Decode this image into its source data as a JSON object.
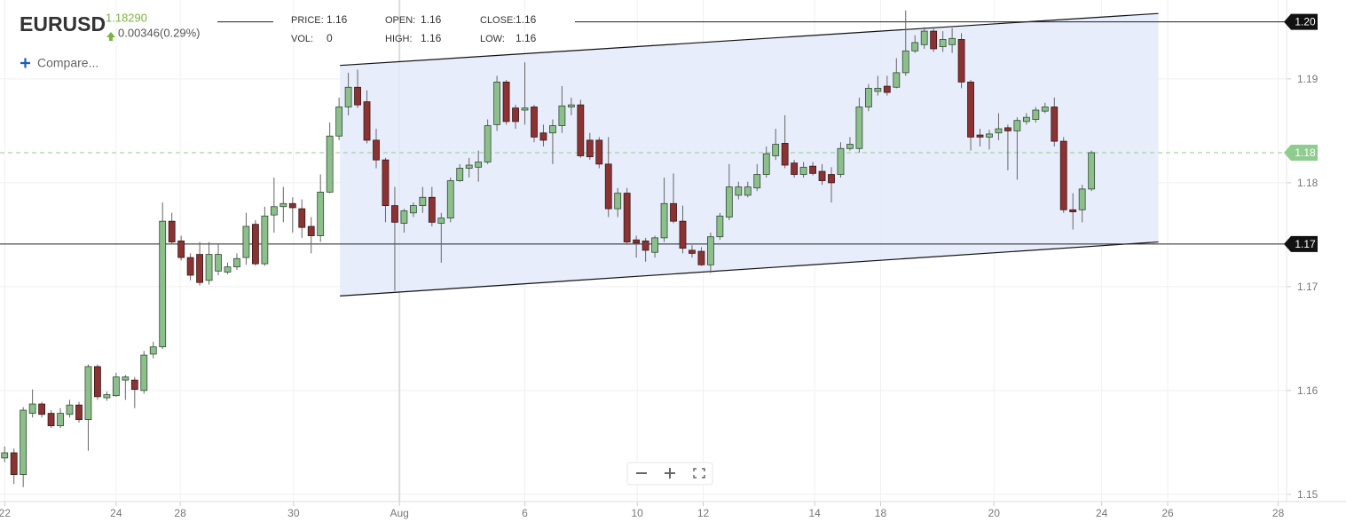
{
  "header": {
    "symbol": "EURUSD",
    "price": "1.18290",
    "change": "0.00346(0.29%)",
    "compare": "Compare...",
    "stats": [
      {
        "label": "PRICE:",
        "value": "1.16"
      },
      {
        "label": "VOL:",
        "value": "0"
      },
      {
        "label": "OPEN:",
        "value": "1.16"
      },
      {
        "label": "HIGH:",
        "value": "1.16"
      },
      {
        "label": "CLOSE:",
        "value": "1.16"
      },
      {
        "label": "LOW:",
        "value": "1.16"
      }
    ]
  },
  "chart_data": {
    "type": "candlestick",
    "up_color": "#8dbf8d",
    "down_color": "#8b3333",
    "grid": true,
    "x": [
      0,
      1,
      2,
      3,
      4,
      5,
      6,
      7,
      8,
      9,
      10,
      11,
      12,
      13,
      14,
      15,
      16,
      17,
      18,
      19,
      20,
      21,
      22,
      23,
      24,
      25,
      26,
      27,
      28,
      29,
      30,
      31,
      32,
      33,
      34,
      35,
      36,
      37,
      38,
      39,
      40,
      41,
      42,
      43,
      44,
      45,
      46,
      47,
      48,
      49,
      50,
      51,
      52,
      53,
      54,
      55,
      56,
      57,
      58,
      59,
      60,
      61,
      62,
      63,
      64,
      65,
      66,
      67,
      68,
      69,
      70,
      71,
      72,
      73,
      74,
      75,
      76,
      77,
      78,
      79,
      80,
      81,
      82,
      83,
      84,
      85,
      86,
      87,
      88,
      89,
      90,
      91,
      92,
      93,
      94,
      95,
      96,
      97,
      98,
      99,
      100,
      101,
      102,
      103,
      104,
      105,
      106,
      107,
      108,
      109,
      110,
      111,
      112,
      113,
      114,
      115,
      116,
      117
    ],
    "open": [
      1.1535,
      1.154,
      1.1519,
      1.1578,
      1.1587,
      1.1578,
      1.1566,
      1.1577,
      1.1586,
      1.1572,
      1.1623,
      1.1593,
      1.1595,
      1.161,
      1.161,
      1.16,
      1.1635,
      1.1642,
      1.1763,
      1.1744,
      1.1728,
      1.1731,
      1.1706,
      1.1715,
      1.1714,
      1.1719,
      1.1728,
      1.176,
      1.1722,
      1.1769,
      1.1777,
      1.178,
      1.1775,
      1.1758,
      1.1749,
      1.1791,
      1.1845,
      1.1873,
      1.1892,
      1.1878,
      1.1841,
      1.1822,
      1.1778,
      1.1761,
      1.1771,
      1.1778,
      1.1786,
      1.1761,
      1.1766,
      1.1802,
      1.1814,
      1.1815,
      1.182,
      1.1856,
      1.1897,
      1.1872,
      1.187,
      1.1873,
      1.1848,
      1.1848,
      1.1855,
      1.1873,
      1.1875,
      1.1841,
      1.1841,
      1.1818,
      1.1775,
      1.179,
      1.1745,
      1.1744,
      1.1733,
      1.1747,
      1.178,
      1.1763,
      1.1735,
      1.1734,
      1.1721,
      1.1748,
      1.1767,
      1.1788,
      1.1788,
      1.1795,
      1.1808,
      1.1826,
      1.1838,
      1.1819,
      1.1808,
      1.1816,
      1.1811,
      1.1808,
      1.1808,
      1.1833,
      1.1833,
      1.1873,
      1.1888,
      1.1893,
      1.1892,
      1.1906,
      1.1927,
      1.1933,
      1.1946,
      1.1931,
      1.1933,
      1.1938,
      1.1897,
      1.1846,
      1.1844,
      1.1848,
      1.1853,
      1.185,
      1.1859,
      1.1861,
      1.1869,
      1.1873,
      1.184,
      1.1774,
      1.1774,
      1.1794
    ],
    "high": [
      1.1546,
      1.1544,
      1.1584,
      1.1601,
      1.1589,
      1.1581,
      1.1583,
      1.1591,
      1.1589,
      1.1625,
      1.1625,
      1.1599,
      1.1617,
      1.1615,
      1.1613,
      1.1638,
      1.1647,
      1.1781,
      1.1771,
      1.1749,
      1.1732,
      1.1743,
      1.1743,
      1.1741,
      1.1723,
      1.1732,
      1.1771,
      1.1764,
      1.1777,
      1.1805,
      1.1796,
      1.1786,
      1.1784,
      1.1767,
      1.1808,
      1.1858,
      1.1882,
      1.1906,
      1.1909,
      1.1889,
      1.1852,
      1.1824,
      1.1796,
      1.1775,
      1.1781,
      1.1796,
      1.1796,
      1.1771,
      1.1805,
      1.1818,
      1.1824,
      1.1831,
      1.1861,
      1.1903,
      1.1899,
      1.1875,
      1.1916,
      1.1875,
      1.1856,
      1.1861,
      1.1893,
      1.1882,
      1.188,
      1.1848,
      1.1844,
      1.1844,
      1.1795,
      1.1795,
      1.1749,
      1.1747,
      1.1749,
      1.1805,
      1.1809,
      1.1778,
      1.174,
      1.1738,
      1.1752,
      1.1771,
      1.1818,
      1.1801,
      1.1801,
      1.1818,
      1.1835,
      1.1852,
      1.1865,
      1.1822,
      1.182,
      1.182,
      1.1818,
      1.1815,
      1.1839,
      1.1844,
      1.1882,
      1.1895,
      1.1903,
      1.1903,
      1.192,
      1.1966,
      1.1942,
      1.195,
      1.195,
      1.1946,
      1.1949,
      1.1944,
      1.1899,
      1.1852,
      1.1851,
      1.1867,
      1.1856,
      1.1863,
      1.1867,
      1.1873,
      1.1877,
      1.1882,
      1.1844,
      1.179,
      1.1798,
      1.1831
    ],
    "low": [
      1.1531,
      1.151,
      1.1507,
      1.1574,
      1.1574,
      1.1564,
      1.1564,
      1.1574,
      1.1569,
      1.1542,
      1.1591,
      1.159,
      1.1594,
      1.1591,
      1.1583,
      1.1597,
      1.1631,
      1.164,
      1.1741,
      1.1725,
      1.1706,
      1.1701,
      1.1702,
      1.1711,
      1.1712,
      1.1716,
      1.1721,
      1.172,
      1.172,
      1.1752,
      1.1762,
      1.1752,
      1.1747,
      1.1732,
      1.1743,
      1.179,
      1.1841,
      1.1865,
      1.1872,
      1.1838,
      1.1814,
      1.1762,
      1.1696,
      1.1752,
      1.1767,
      1.1771,
      1.1758,
      1.1723,
      1.1762,
      1.1801,
      1.1805,
      1.1801,
      1.1818,
      1.185,
      1.1856,
      1.1852,
      1.1856,
      1.1839,
      1.1835,
      1.1818,
      1.1848,
      1.1865,
      1.1824,
      1.1822,
      1.1814,
      1.1767,
      1.1767,
      1.1741,
      1.1728,
      1.1724,
      1.1728,
      1.1743,
      1.1761,
      1.1732,
      1.1728,
      1.172,
      1.1713,
      1.1745,
      1.1764,
      1.1784,
      1.1786,
      1.1792,
      1.1805,
      1.1822,
      1.1814,
      1.1805,
      1.1805,
      1.1807,
      1.1798,
      1.1781,
      1.1805,
      1.1831,
      1.1829,
      1.1869,
      1.1884,
      1.1884,
      1.1891,
      1.1903,
      1.1925,
      1.1929,
      1.1926,
      1.1926,
      1.1925,
      1.1891,
      1.1831,
      1.1835,
      1.1832,
      1.1841,
      1.1812,
      1.1803,
      1.1856,
      1.1858,
      1.1867,
      1.1835,
      1.1771,
      1.1755,
      1.1762,
      1.1792
    ],
    "close": [
      1.154,
      1.1519,
      1.1581,
      1.1587,
      1.1577,
      1.1566,
      1.1578,
      1.1586,
      1.1572,
      1.1623,
      1.1594,
      1.1596,
      1.1613,
      1.1613,
      1.1601,
      1.1634,
      1.1642,
      1.1763,
      1.1743,
      1.1728,
      1.1711,
      1.1704,
      1.1731,
      1.1731,
      1.1719,
      1.1727,
      1.1758,
      1.1722,
      1.1768,
      1.1777,
      1.178,
      1.1776,
      1.1757,
      1.1749,
      1.1791,
      1.1845,
      1.1873,
      1.1892,
      1.1875,
      1.1841,
      1.1822,
      1.1778,
      1.1762,
      1.1773,
      1.1778,
      1.1786,
      1.1762,
      1.1766,
      1.1802,
      1.1814,
      1.1817,
      1.182,
      1.1855,
      1.1897,
      1.1859,
      1.1859,
      1.1872,
      1.1844,
      1.1841,
      1.1855,
      1.1874,
      1.1875,
      1.1826,
      1.1825,
      1.1818,
      1.1775,
      1.179,
      1.1743,
      1.1742,
      1.1735,
      1.1747,
      1.178,
      1.1763,
      1.1737,
      1.1732,
      1.1721,
      1.1748,
      1.1768,
      1.1796,
      1.1796,
      1.1796,
      1.1808,
      1.1828,
      1.1837,
      1.1817,
      1.1808,
      1.1815,
      1.1809,
      1.1802,
      1.18,
      1.1833,
      1.1837,
      1.1873,
      1.1891,
      1.1891,
      1.1887,
      1.1906,
      1.1927,
      1.1935,
      1.1946,
      1.1929,
      1.1938,
      1.1939,
      1.1897,
      1.1844,
      1.1844,
      1.1847,
      1.1852,
      1.185,
      1.186,
      1.1863,
      1.187,
      1.1873,
      1.184,
      1.1774,
      1.1772,
      1.1794,
      1.1829
    ],
    "xlim": [
      -0.5,
      138
    ],
    "ylim": [
      1.1493,
      1.1976
    ],
    "xticks": [
      {
        "value": 0,
        "label": "22"
      },
      {
        "value": 12,
        "label": "24"
      },
      {
        "value": 18.9,
        "label": "28"
      },
      {
        "value": 31.1,
        "label": "30"
      },
      {
        "value": 42.5,
        "label": "Aug"
      },
      {
        "value": 56,
        "label": "6"
      },
      {
        "value": 68.1,
        "label": "10"
      },
      {
        "value": 75.2,
        "label": "12"
      },
      {
        "value": 87.2,
        "label": "14"
      },
      {
        "value": 94.3,
        "label": "18"
      },
      {
        "value": 106.5,
        "label": "20"
      },
      {
        "value": 118.1,
        "label": "24"
      },
      {
        "value": 125.2,
        "label": "26"
      },
      {
        "value": 137.1,
        "label": "28"
      }
    ],
    "yticks": [
      1.15,
      1.16,
      1.17,
      1.18,
      1.19
    ],
    "channel": {
      "x": [
        36.1,
        124.2
      ],
      "upper": [
        1.1913,
        1.1963
      ],
      "lower": [
        1.1691,
        1.1743
      ],
      "color": "#e4eafb"
    },
    "levels": [
      {
        "value": 1.1955,
        "label": "1.20"
      },
      {
        "value": 1.1741,
        "label": "1.17"
      }
    ],
    "last_price": {
      "value": 1.1829,
      "label": "1.18",
      "color": "#8fcc8f"
    }
  }
}
